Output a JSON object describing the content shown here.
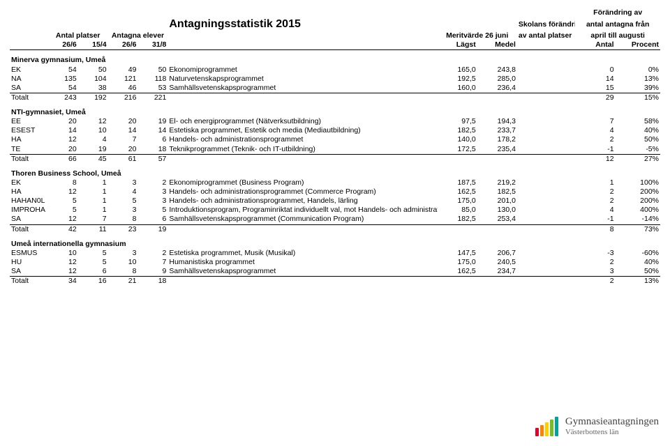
{
  "title": "Antagningsstatistik 2015",
  "header": {
    "antal_platser": "Antal platser",
    "antagna_elever": "Antagna elever",
    "meritvarde": "Meritvärde 26 juni",
    "skolans_for": "Skolans förändringar",
    "skolans_for2": "av antal platser",
    "forandring_av": "Förändring av",
    "antal_antagna": "antal antagna från",
    "april_augusti": "april till augusti",
    "dates": {
      "d1": "26/6",
      "d2": "15/4",
      "d3": "26/6",
      "d4": "31/8"
    },
    "lagst": "Lägst",
    "medel": "Medel",
    "antal": "Antal",
    "procent": "Procent"
  },
  "schools": [
    {
      "name": "Minerva gymnasium, Umeå",
      "rows": [
        {
          "code": "EK",
          "n1": "54",
          "n2": "50",
          "n3": "49",
          "n4": "50",
          "prog": "Ekonomiprogrammet",
          "mL": "165,0",
          "mM": "243,8",
          "cN": "0",
          "cP": "0%"
        },
        {
          "code": "NA",
          "n1": "135",
          "n2": "104",
          "n3": "121",
          "n4": "118",
          "prog": "Naturvetenskapsprogrammet",
          "mL": "192,5",
          "mM": "285,0",
          "cN": "14",
          "cP": "13%"
        },
        {
          "code": "SA",
          "n1": "54",
          "n2": "38",
          "n3": "46",
          "n4": "53",
          "prog": "Samhällsvetenskapsprogrammet",
          "mL": "160,0",
          "mM": "236,4",
          "cN": "15",
          "cP": "39%"
        },
        {
          "code": "Totalt",
          "n1": "243",
          "n2": "192",
          "n3": "216",
          "n4": "221",
          "prog": "",
          "mL": "",
          "mM": "",
          "cN": "29",
          "cP": "15%"
        }
      ]
    },
    {
      "name": "NTI-gymnasiet, Umeå",
      "rows": [
        {
          "code": "EE",
          "n1": "20",
          "n2": "12",
          "n3": "20",
          "n4": "19",
          "prog": "El- och energiprogrammet (Nätverksutbildning)",
          "mL": "97,5",
          "mM": "194,3",
          "cN": "7",
          "cP": "58%"
        },
        {
          "code": "ESEST",
          "n1": "14",
          "n2": "10",
          "n3": "14",
          "n4": "14",
          "prog": "Estetiska programmet, Estetik och media (Mediautbildning)",
          "mL": "182,5",
          "mM": "233,7",
          "cN": "4",
          "cP": "40%"
        },
        {
          "code": "HA",
          "n1": "12",
          "n2": "4",
          "n3": "7",
          "n4": "6",
          "prog": "Handels- och administrationsprogrammet",
          "mL": "140,0",
          "mM": "178,2",
          "cN": "2",
          "cP": "50%"
        },
        {
          "code": "TE",
          "n1": "20",
          "n2": "19",
          "n3": "20",
          "n4": "18",
          "prog": "Teknikprogrammet (Teknik- och IT-utbildning)",
          "mL": "172,5",
          "mM": "235,4",
          "cN": "-1",
          "cP": "-5%"
        },
        {
          "code": "Totalt",
          "n1": "66",
          "n2": "45",
          "n3": "61",
          "n4": "57",
          "prog": "",
          "mL": "",
          "mM": "",
          "cN": "12",
          "cP": "27%"
        }
      ]
    },
    {
      "name": "Thoren Business School, Umeå",
      "rows": [
        {
          "code": "EK",
          "n1": "8",
          "n2": "1",
          "n3": "3",
          "n4": "2",
          "prog": "Ekonomiprogrammet (Business Program)",
          "mL": "187,5",
          "mM": "219,2",
          "cN": "1",
          "cP": "100%"
        },
        {
          "code": "HA",
          "n1": "12",
          "n2": "1",
          "n3": "4",
          "n4": "3",
          "prog": "Handels- och administrationsprogrammet (Commerce Program)",
          "mL": "162,5",
          "mM": "182,5",
          "cN": "2",
          "cP": "200%"
        },
        {
          "code": "HAHAN0L",
          "n1": "5",
          "n2": "1",
          "n3": "5",
          "n4": "3",
          "prog": "Handels- och administrationsprogrammet, Handels, lärling",
          "mL": "175,0",
          "mM": "201,0",
          "cN": "2",
          "cP": "200%"
        },
        {
          "code": "IMPROHA",
          "n1": "5",
          "n2": "1",
          "n3": "3",
          "n4": "5",
          "prog": "Introduktionsprogram, Programinriktat individuellt val, mot Handels- och administrationsprogrammet",
          "mL": "85,0",
          "mM": "130,0",
          "cN": "4",
          "cP": "400%"
        },
        {
          "code": "SA",
          "n1": "12",
          "n2": "7",
          "n3": "8",
          "n4": "6",
          "prog": "Samhällsvetenskapsprogrammet (Communication Program)",
          "mL": "182,5",
          "mM": "253,4",
          "cN": "-1",
          "cP": "-14%"
        },
        {
          "code": "Totalt",
          "n1": "42",
          "n2": "11",
          "n3": "23",
          "n4": "19",
          "prog": "",
          "mL": "",
          "mM": "",
          "cN": "8",
          "cP": "73%"
        }
      ]
    },
    {
      "name": "Umeå internationella gymnasium",
      "rows": [
        {
          "code": "ESMUS",
          "n1": "10",
          "n2": "5",
          "n3": "3",
          "n4": "2",
          "prog": "Estetiska programmet, Musik (Musikal)",
          "mL": "147,5",
          "mM": "206,7",
          "cN": "-3",
          "cP": "-60%"
        },
        {
          "code": "HU",
          "n1": "12",
          "n2": "5",
          "n3": "10",
          "n4": "7",
          "prog": "Humanistiska programmet",
          "mL": "175,0",
          "mM": "240,5",
          "cN": "2",
          "cP": "40%"
        },
        {
          "code": "SA",
          "n1": "12",
          "n2": "6",
          "n3": "8",
          "n4": "9",
          "prog": "Samhällsvetenskapsprogrammet",
          "mL": "162,5",
          "mM": "234,7",
          "cN": "3",
          "cP": "50%"
        },
        {
          "code": "Totalt",
          "n1": "34",
          "n2": "16",
          "n3": "21",
          "n4": "18",
          "prog": "",
          "mL": "",
          "mM": "",
          "cN": "2",
          "cP": "13%"
        }
      ]
    }
  ],
  "footer": {
    "text1": "Gymnasieantagningen",
    "text2": "Västerbottens län",
    "colors": [
      "#e4002b",
      "#ff8200",
      "#ffcd00",
      "#78be20",
      "#00a499"
    ]
  }
}
